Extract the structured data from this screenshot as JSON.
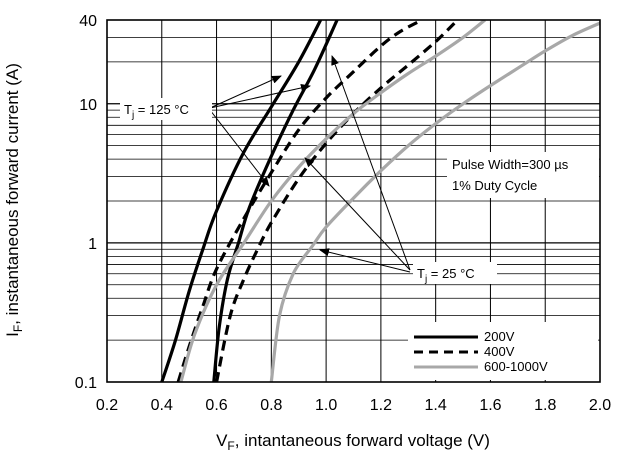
{
  "chart_data": {
    "type": "line",
    "title": "",
    "xlabel_main": "V",
    "xlabel_sub": "F",
    "xlabel_rest": ", intantaneous forward voltage (V)",
    "ylabel_main": "I",
    "ylabel_sub": "F",
    "ylabel_rest": ", instantaneous forward current (A)",
    "x_scale": "linear",
    "y_scale": "log",
    "xlim": [
      0.2,
      2.0
    ],
    "ylim": [
      0.1,
      40
    ],
    "x_ticks": [
      0.2,
      0.4,
      0.6,
      0.8,
      1.0,
      1.2,
      1.4,
      1.6,
      1.8,
      2.0
    ],
    "x_tick_labels": [
      "0.2",
      "0.4",
      "0.6",
      "0.8",
      "1.0",
      "1.2",
      "1.4",
      "1.6",
      "1.8",
      "2.0"
    ],
    "y_ticks": [
      0.1,
      1,
      10,
      40
    ],
    "y_tick_labels": [
      "0.1",
      "1",
      "10",
      "40"
    ],
    "grid": true,
    "legend_position": "bottom-right",
    "series": [
      {
        "name": "200V",
        "temperature": "125 °C",
        "style": "solid",
        "color": "#000000",
        "x": [
          0.4,
          0.45,
          0.5,
          0.55,
          0.6,
          0.7,
          0.8,
          0.9,
          0.98
        ],
        "y": [
          0.1,
          0.2,
          0.45,
          0.9,
          1.7,
          4.5,
          9.5,
          20,
          40
        ]
      },
      {
        "name": "200V",
        "temperature": "25 °C",
        "style": "solid",
        "color": "#000000",
        "x": [
          0.59,
          0.61,
          0.64,
          0.68,
          0.72,
          0.8,
          0.88,
          0.96,
          1.04
        ],
        "y": [
          0.1,
          0.25,
          0.55,
          1.0,
          1.8,
          4.2,
          9.0,
          18,
          40
        ]
      },
      {
        "name": "400V",
        "temperature": "125 °C",
        "style": "dashed",
        "color": "#000000",
        "x": [
          0.46,
          0.5,
          0.55,
          0.6,
          0.7,
          0.8,
          0.9,
          1.0,
          1.1,
          1.2,
          1.27,
          1.35
        ],
        "y": [
          0.1,
          0.18,
          0.35,
          0.65,
          1.5,
          3.2,
          6.5,
          11,
          17,
          26,
          33,
          40
        ]
      },
      {
        "name": "400V",
        "temperature": "25 °C",
        "style": "dashed",
        "color": "#000000",
        "x": [
          0.6,
          0.65,
          0.7,
          0.75,
          0.8,
          0.9,
          1.0,
          1.1,
          1.2,
          1.3,
          1.4,
          1.48
        ],
        "y": [
          0.1,
          0.3,
          0.55,
          0.9,
          1.4,
          2.9,
          5.2,
          8.5,
          13,
          19,
          28,
          40
        ]
      },
      {
        "name": "600-1000V",
        "temperature": "125 °C",
        "style": "solid",
        "color": "#a8a8a8",
        "x": [
          0.47,
          0.52,
          0.6,
          0.7,
          0.8,
          0.9,
          1.0,
          1.1,
          1.2,
          1.3,
          1.4,
          1.5,
          1.58
        ],
        "y": [
          0.1,
          0.22,
          0.5,
          1.0,
          2.0,
          3.5,
          5.6,
          8.5,
          12,
          16.5,
          22,
          30,
          40
        ]
      },
      {
        "name": "600-1000V",
        "temperature": "25 °C",
        "style": "solid",
        "color": "#a8a8a8",
        "x": [
          0.8,
          0.83,
          0.88,
          0.95,
          1.0,
          1.1,
          1.2,
          1.3,
          1.4,
          1.5,
          1.6,
          1.7,
          1.8,
          1.9,
          2.0
        ],
        "y": [
          0.1,
          0.3,
          0.6,
          0.95,
          1.3,
          2.1,
          3.3,
          5.0,
          7.2,
          10,
          13.5,
          18,
          24,
          31,
          38
        ]
      }
    ],
    "legend": [
      {
        "label": "200V",
        "style": "solid",
        "color": "#000000"
      },
      {
        "label": "400V",
        "style": "dashed",
        "color": "#000000"
      },
      {
        "label": "600-1000V",
        "style": "solid",
        "color": "#a8a8a8"
      }
    ],
    "annotations": {
      "tj_hot_main": "T",
      "tj_hot_sub": "j",
      "tj_hot_rest": " = 125 °C",
      "tj_cold_main": "T",
      "tj_cold_sub": "j",
      "tj_cold_rest": " = 25 °C",
      "pulse_width": "Pulse Width=300 µs",
      "duty_cycle": "1% Duty Cycle"
    }
  }
}
